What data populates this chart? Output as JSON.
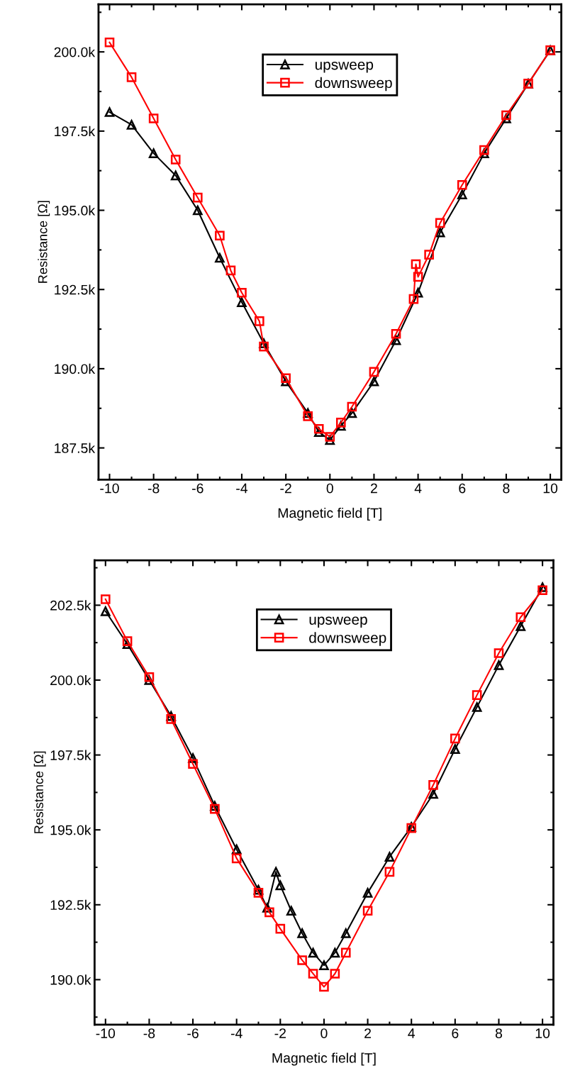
{
  "chart_data": [
    {
      "type": "line",
      "xlabel": "Magnetic field [T]",
      "ylabel": "Resistance [Ω]",
      "xlim": [
        -10.5,
        10.5
      ],
      "ylim": [
        186500,
        201500
      ],
      "xticks": [
        -10,
        -8,
        -6,
        -4,
        -2,
        0,
        2,
        4,
        6,
        8,
        10
      ],
      "yticks": [
        {
          "value": 187500,
          "label": "187.5k"
        },
        {
          "value": 190000,
          "label": "190.0k"
        },
        {
          "value": 192500,
          "label": "192.5k"
        },
        {
          "value": 195000,
          "label": "195.0k"
        },
        {
          "value": 197500,
          "label": "197.5k"
        },
        {
          "value": 200000,
          "label": "200.0k"
        }
      ],
      "grid": false,
      "legend": "top",
      "line_style": "solid",
      "series": [
        {
          "name": "upsweep",
          "color": "#000000",
          "marker": "triangle",
          "x": [
            -10,
            -9,
            -8,
            -7,
            -6,
            -5,
            -4,
            -3,
            -2,
            -1,
            -0.5,
            0,
            0.5,
            1,
            2,
            3,
            4,
            5,
            6,
            7,
            8,
            9,
            10
          ],
          "values": [
            198100,
            197700,
            196800,
            196100,
            195000,
            193500,
            192100,
            190800,
            189600,
            188600,
            188000,
            187750,
            188200,
            188600,
            189600,
            190900,
            192400,
            194300,
            195500,
            196800,
            197900,
            199000,
            200050
          ]
        },
        {
          "name": "downsweep",
          "color": "#ff0000",
          "marker": "square",
          "x": [
            -10,
            -9,
            -8,
            -7,
            -6,
            -5,
            -4.5,
            -4,
            -3.2,
            -3,
            -2,
            -1,
            -0.5,
            0,
            0.5,
            1,
            2,
            3,
            3.8,
            3.9,
            4,
            4.5,
            5,
            6,
            7,
            8,
            9,
            10
          ],
          "values": [
            200300,
            199200,
            197900,
            196600,
            195400,
            194200,
            193100,
            192400,
            191500,
            190700,
            189700,
            188500,
            188100,
            187850,
            188300,
            188800,
            189900,
            191100,
            192200,
            193300,
            192900,
            193600,
            194600,
            195800,
            196900,
            198000,
            199000,
            200050
          ]
        }
      ]
    },
    {
      "type": "line",
      "xlabel": "Magnetic field [T]",
      "ylabel": "Resistance [Ω]",
      "xlim": [
        -10.5,
        10.5
      ],
      "ylim": [
        188500,
        204000
      ],
      "xticks": [
        -10,
        -8,
        -6,
        -4,
        -2,
        0,
        2,
        4,
        6,
        8,
        10
      ],
      "yticks": [
        {
          "value": 190000,
          "label": "190.0k"
        },
        {
          "value": 192500,
          "label": "192.5k"
        },
        {
          "value": 195000,
          "label": "195.0k"
        },
        {
          "value": 197500,
          "label": "197.5k"
        },
        {
          "value": 200000,
          "label": "200.0k"
        },
        {
          "value": 202500,
          "label": "202.5k"
        }
      ],
      "grid": false,
      "legend": "top",
      "line_style": "solid",
      "series": [
        {
          "name": "upsweep",
          "color": "#000000",
          "marker": "triangle",
          "x": [
            -10,
            -9,
            -8,
            -7,
            -6,
            -5,
            -4,
            -3,
            -2.6,
            -2.2,
            -2,
            -1.5,
            -1,
            -0.5,
            0,
            0.5,
            1,
            2,
            3,
            4,
            5,
            6,
            7,
            8,
            9,
            10
          ],
          "values": [
            202300,
            201200,
            200000,
            198800,
            197400,
            195800,
            194350,
            193000,
            192400,
            193600,
            193150,
            192300,
            191550,
            190900,
            190480,
            190900,
            191550,
            192900,
            194100,
            195100,
            196200,
            197700,
            199100,
            200500,
            201800,
            203100
          ]
        },
        {
          "name": "downsweep",
          "color": "#ff0000",
          "marker": "square",
          "x": [
            -10,
            -9,
            -8,
            -7,
            -6,
            -5,
            -4,
            -3,
            -2.5,
            -2,
            -1,
            -0.5,
            0,
            0.5,
            1,
            2,
            3,
            4,
            5,
            6,
            7,
            8,
            9,
            10
          ],
          "values": [
            202700,
            201300,
            200100,
            198700,
            197200,
            195700,
            194050,
            192900,
            192250,
            191700,
            190650,
            190200,
            189760,
            190200,
            190900,
            192300,
            193600,
            195060,
            196500,
            198050,
            199500,
            200900,
            202100,
            203000
          ]
        }
      ]
    }
  ]
}
